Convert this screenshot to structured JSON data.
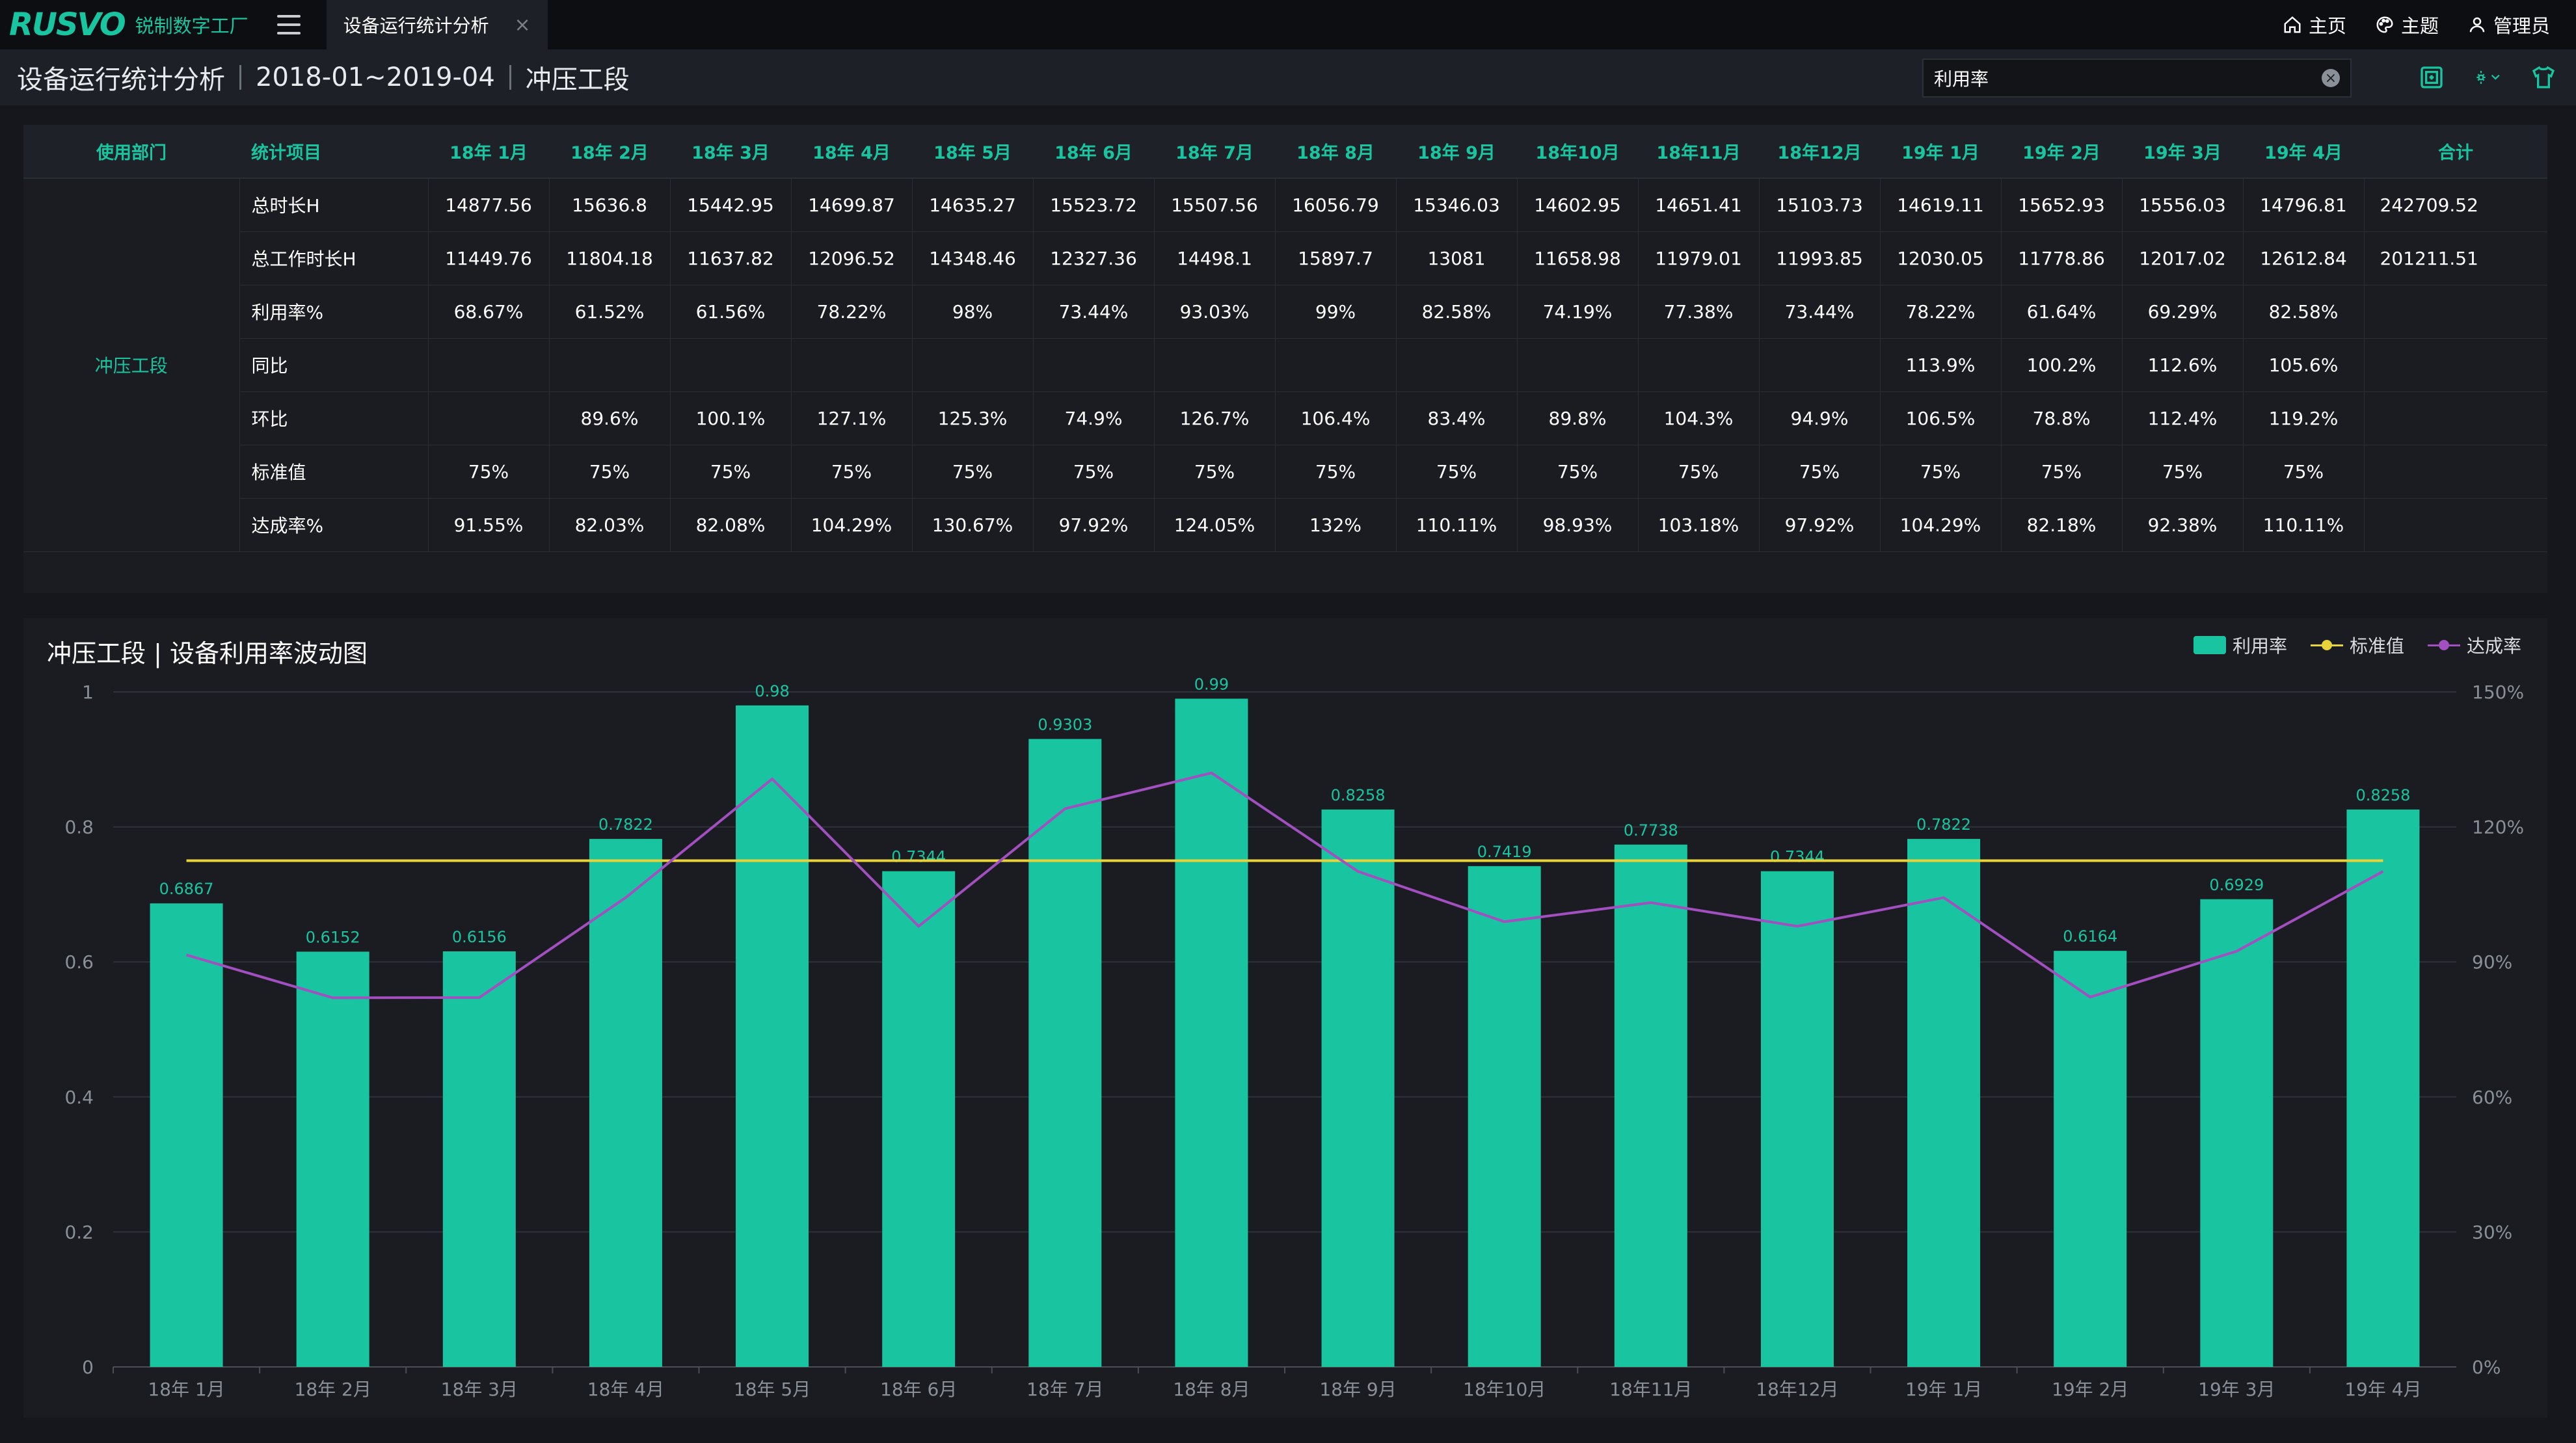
{
  "app": {
    "logo": "RUSVO",
    "logo_sub": "锐制数字工厂"
  },
  "tab": {
    "label": "设备运行统计分析",
    "close": "×"
  },
  "top_nav": {
    "home": "主页",
    "theme": "主题",
    "user": "管理员"
  },
  "header": {
    "title": "设备运行统计分析",
    "period": "2018-01~2019-04",
    "section": "冲压工段"
  },
  "search": {
    "value": "利用率",
    "clear": "×"
  },
  "table": {
    "columns": [
      "使用部门",
      "统计项目",
      "18年 1月",
      "18年 2月",
      "18年 3月",
      "18年 4月",
      "18年 5月",
      "18年 6月",
      "18年 7月",
      "18年 8月",
      "18年 9月",
      "18年10月",
      "18年11月",
      "18年12月",
      "19年 1月",
      "19年 2月",
      "19年 3月",
      "19年 4月",
      "合计"
    ],
    "department": "冲压工段",
    "rows": [
      {
        "item": "总时长H",
        "values": [
          "14877.56",
          "15636.8",
          "15442.95",
          "14699.87",
          "14635.27",
          "15523.72",
          "15507.56",
          "16056.79",
          "15346.03",
          "14602.95",
          "14651.41",
          "15103.73",
          "14619.11",
          "15652.93",
          "15556.03",
          "14796.81"
        ],
        "total": "242709.52"
      },
      {
        "item": "总工作时长H",
        "values": [
          "11449.76",
          "11804.18",
          "11637.82",
          "12096.52",
          "14348.46",
          "12327.36",
          "14498.1",
          "15897.7",
          "13081",
          "11658.98",
          "11979.01",
          "11993.85",
          "12030.05",
          "11778.86",
          "12017.02",
          "12612.84"
        ],
        "total": "201211.51"
      },
      {
        "item": "利用率%",
        "values": [
          "68.67%",
          "61.52%",
          "61.56%",
          "78.22%",
          "98%",
          "73.44%",
          "93.03%",
          "99%",
          "82.58%",
          "74.19%",
          "77.38%",
          "73.44%",
          "78.22%",
          "61.64%",
          "69.29%",
          "82.58%"
        ],
        "total": ""
      },
      {
        "item": "同比",
        "values": [
          "",
          "",
          "",
          "",
          "",
          "",
          "",
          "",
          "",
          "",
          "",
          "",
          "113.9%",
          "100.2%",
          "112.6%",
          "105.6%"
        ],
        "total": ""
      },
      {
        "item": "环比",
        "values": [
          "",
          "89.6%",
          "100.1%",
          "127.1%",
          "125.3%",
          "74.9%",
          "126.7%",
          "106.4%",
          "83.4%",
          "89.8%",
          "104.3%",
          "94.9%",
          "106.5%",
          "78.8%",
          "112.4%",
          "119.2%"
        ],
        "total": ""
      },
      {
        "item": "标准值",
        "values": [
          "75%",
          "75%",
          "75%",
          "75%",
          "75%",
          "75%",
          "75%",
          "75%",
          "75%",
          "75%",
          "75%",
          "75%",
          "75%",
          "75%",
          "75%",
          "75%"
        ],
        "total": ""
      },
      {
        "item": "达成率%",
        "values": [
          "91.55%",
          "82.03%",
          "82.08%",
          "104.29%",
          "130.67%",
          "97.92%",
          "124.05%",
          "132%",
          "110.11%",
          "98.93%",
          "103.18%",
          "97.92%",
          "104.29%",
          "82.18%",
          "92.38%",
          "110.11%"
        ],
        "total": ""
      }
    ]
  },
  "chart_panel": {
    "title": "冲压工段 | 设备利用率波动图"
  },
  "chart_data": {
    "type": "bar",
    "categories": [
      "18年 1月",
      "18年 2月",
      "18年 3月",
      "18年 4月",
      "18年 5月",
      "18年 6月",
      "18年 7月",
      "18年 8月",
      "18年 9月",
      "18年10月",
      "18年11月",
      "18年12月",
      "19年 1月",
      "19年 2月",
      "19年 3月",
      "19年 4月"
    ],
    "series": [
      {
        "name": "利用率",
        "type": "bar",
        "axis": "left",
        "color": "#18c5a0",
        "values": [
          0.6867,
          0.6152,
          0.6156,
          0.7822,
          0.98,
          0.7344,
          0.9303,
          0.99,
          0.8258,
          0.7419,
          0.7738,
          0.7344,
          0.7822,
          0.6164,
          0.6929,
          0.8258
        ],
        "labels": [
          "0.6867",
          "0.6152",
          "0.6156",
          "0.7822",
          "0.98",
          "0.7344",
          "0.9303",
          "0.99",
          "0.8258",
          "0.7419",
          "0.7738",
          "0.7344",
          "0.7822",
          "0.6164",
          "0.6929",
          "0.8258"
        ]
      },
      {
        "name": "标准值",
        "type": "line",
        "axis": "left",
        "color": "#e8d43a",
        "values": [
          0.75,
          0.75,
          0.75,
          0.75,
          0.75,
          0.75,
          0.75,
          0.75,
          0.75,
          0.75,
          0.75,
          0.75,
          0.75,
          0.75,
          0.75,
          0.75
        ]
      },
      {
        "name": "达成率",
        "type": "line",
        "axis": "right",
        "color": "#a24fc0",
        "values": [
          91.55,
          82.03,
          82.08,
          104.29,
          130.67,
          97.92,
          124.05,
          132,
          110.11,
          98.93,
          103.18,
          97.92,
          104.29,
          82.18,
          92.38,
          110.11
        ]
      }
    ],
    "y_left": {
      "min": 0,
      "max": 1,
      "ticks": [
        "0",
        "0.2",
        "0.4",
        "0.6",
        "0.8",
        "1"
      ]
    },
    "y_right": {
      "min": 0,
      "max": 150,
      "ticks": [
        "0%",
        "30%",
        "60%",
        "90%",
        "120%",
        "150%"
      ]
    },
    "legend_position": "top-right",
    "grid": true
  },
  "colors": {
    "accent": "#18c5a0",
    "standard": "#e8d43a",
    "achieve": "#a24fc0",
    "background": "#15171c",
    "panel": "#1a1c21"
  }
}
